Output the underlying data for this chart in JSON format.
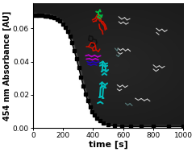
{
  "title": "",
  "xlabel": "time [s]",
  "ylabel": "454 nm Absorbance [AU]",
  "xlim": [
    0,
    1000
  ],
  "ylim": [
    0,
    0.075
  ],
  "yticks": [
    0,
    0.02,
    0.04,
    0.06
  ],
  "xticks": [
    0,
    200,
    400,
    600,
    800,
    1000
  ],
  "curve_params": {
    "y0": 0.068,
    "plateau": 0.001,
    "t_mid": 310,
    "k": 0.022
  },
  "figsize": [
    2.43,
    1.89
  ],
  "dpi": 100,
  "xlabel_fontsize": 8,
  "ylabel_fontsize": 7,
  "tick_fontsize": 6.5,
  "molecule_colors": {
    "green": "#00bb44",
    "red": "#cc1100",
    "cyan": "#00bbbb",
    "purple": "#bb00cc",
    "blue_dark": "#2200bb",
    "black_mol": "#111111",
    "white_mol": "#cccccc",
    "gray_mol": "#557777",
    "teal_dark": "#336655"
  },
  "bg_gradient_midpoint": 0.32,
  "marker_times_sparse": [
    0,
    20,
    40,
    60,
    80,
    100,
    120,
    140,
    160,
    180,
    200,
    215,
    230,
    245,
    260,
    275,
    290,
    305,
    320,
    335,
    350,
    365,
    380,
    395,
    410,
    425,
    445,
    470,
    500,
    540,
    590,
    650,
    720,
    800,
    900,
    1000
  ]
}
